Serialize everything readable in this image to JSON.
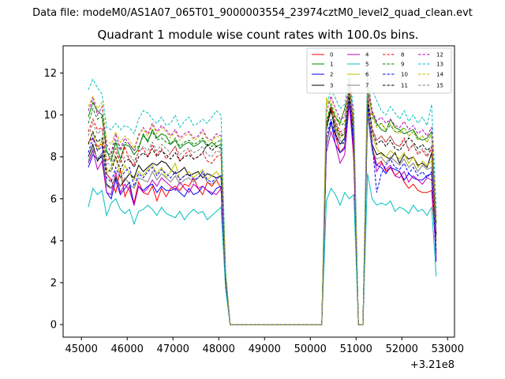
{
  "suptitle": "Data file: modeM0/AS1A07_065T01_9000003554_23974cztM0_level2_quad_clean.evt",
  "chart_data": {
    "type": "line",
    "title": "Quadrant 1 module wise count rates with 100.0s bins.",
    "xlabel": "",
    "ylabel": "",
    "x_offset_label": "+3.21e8",
    "xlim": [
      44600,
      53150
    ],
    "ylim": [
      -0.6,
      13.3
    ],
    "x_ticks": [
      45000,
      46000,
      47000,
      48000,
      49000,
      50000,
      51000,
      52000,
      53000
    ],
    "x_tick_labels": [
      "45000",
      "46000",
      "47000",
      "48000",
      "49000",
      "50000",
      "51000",
      "52000",
      "53000"
    ],
    "y_ticks": [
      0,
      2,
      4,
      6,
      8,
      10,
      12
    ],
    "y_tick_labels": [
      "0",
      "2",
      "4",
      "6",
      "8",
      "10",
      "12"
    ],
    "legend_position": "top-right",
    "x": [
      45150,
      45250,
      45350,
      45450,
      45550,
      45650,
      45750,
      45850,
      45950,
      46050,
      46150,
      46250,
      46350,
      46450,
      46550,
      46650,
      46750,
      46850,
      46950,
      47050,
      47150,
      47250,
      47350,
      47450,
      47550,
      47650,
      47750,
      47850,
      47950,
      48050,
      48150,
      48250,
      50250,
      50350,
      50450,
      50550,
      50650,
      50750,
      50850,
      50950,
      51050,
      51150,
      51250,
      51350,
      51450,
      51550,
      51650,
      51750,
      51850,
      51950,
      52050,
      52150,
      52250,
      52350,
      52450,
      52550,
      52650,
      52750
    ],
    "series": [
      {
        "name": "0",
        "color": "#ff0000",
        "dash": "solid",
        "values": [
          8.7,
          8.9,
          8.5,
          8.6,
          7.2,
          6.9,
          6.3,
          7.4,
          6.1,
          6.6,
          5.8,
          6.8,
          6.3,
          6.2,
          6.6,
          5.9,
          6.5,
          6.1,
          6.5,
          6.6,
          6.4,
          6.7,
          6.6,
          7.0,
          6.5,
          6.2,
          6.8,
          6.6,
          6.9,
          6.5,
          2.0,
          0.0,
          0.0,
          8.6,
          9.6,
          9.0,
          8.2,
          8.5,
          10.9,
          7.8,
          0.0,
          0.0,
          10.6,
          8.5,
          7.6,
          7.8,
          7.3,
          7.5,
          7.1,
          7.3,
          6.8,
          6.5,
          6.7,
          6.4,
          6.3,
          6.3,
          6.4,
          3.5
        ]
      },
      {
        "name": "1",
        "color": "#008000",
        "dash": "solid",
        "values": [
          9.9,
          10.6,
          10.2,
          10.0,
          8.3,
          7.8,
          8.7,
          7.9,
          8.6,
          8.5,
          8.1,
          8.4,
          9.1,
          8.7,
          9.3,
          8.9,
          9.1,
          9.0,
          8.6,
          8.8,
          8.4,
          8.6,
          8.7,
          8.5,
          8.6,
          8.8,
          8.5,
          8.7,
          8.5,
          8.6,
          2.4,
          0.0,
          0.0,
          9.5,
          10.4,
          9.9,
          9.6,
          10.3,
          11.1,
          9.5,
          0.0,
          0.0,
          11.2,
          10.1,
          9.6,
          9.3,
          9.2,
          9.8,
          9.4,
          9.3,
          9.1,
          9.2,
          9.3,
          8.9,
          8.8,
          8.9,
          9.2,
          4.8
        ]
      },
      {
        "name": "2",
        "color": "#0000ff",
        "dash": "solid",
        "values": [
          7.5,
          8.1,
          7.9,
          8.0,
          6.3,
          6.0,
          6.9,
          6.2,
          6.5,
          6.8,
          5.7,
          6.6,
          6.4,
          6.6,
          6.7,
          6.3,
          6.6,
          6.4,
          6.4,
          6.5,
          6.3,
          6.1,
          6.5,
          6.2,
          6.3,
          6.6,
          6.4,
          6.2,
          6.5,
          6.6,
          2.0,
          0.0,
          0.0,
          8.5,
          9.7,
          8.6,
          8.2,
          8.4,
          10.8,
          8.4,
          0.0,
          0.0,
          10.0,
          8.3,
          7.6,
          7.5,
          7.2,
          7.5,
          7.4,
          7.3,
          6.9,
          7.2,
          7.0,
          6.9,
          6.9,
          7.1,
          7.2,
          3.0
        ]
      },
      {
        "name": "3",
        "color": "#000000",
        "dash": "solid",
        "values": [
          8.0,
          8.6,
          7.8,
          8.1,
          6.7,
          6.5,
          7.0,
          6.6,
          6.9,
          7.2,
          7.0,
          7.6,
          7.3,
          7.5,
          7.7,
          7.6,
          7.8,
          7.7,
          7.4,
          7.2,
          7.3,
          7.5,
          7.1,
          7.2,
          7.3,
          7.0,
          7.2,
          7.1,
          7.0,
          7.1,
          2.1,
          0.0,
          0.0,
          9.3,
          10.3,
          9.1,
          8.6,
          8.9,
          10.9,
          9.0,
          0.0,
          0.0,
          10.5,
          8.6,
          8.1,
          8.2,
          8.0,
          7.9,
          8.2,
          7.7,
          8.1,
          7.9,
          8.0,
          7.6,
          7.7,
          7.5,
          8.2,
          4.0
        ]
      },
      {
        "name": "4",
        "color": "#bf00bf",
        "dash": "solid",
        "values": [
          7.7,
          8.3,
          7.4,
          7.8,
          6.3,
          6.2,
          7.3,
          6.3,
          6.7,
          6.4,
          5.7,
          6.6,
          6.3,
          6.5,
          6.9,
          6.6,
          7.0,
          6.8,
          6.6,
          6.4,
          6.8,
          6.5,
          6.3,
          6.7,
          6.5,
          6.6,
          6.4,
          6.3,
          6.2,
          6.5,
          2.0,
          0.0,
          0.0,
          8.2,
          9.2,
          8.6,
          7.7,
          8.1,
          10.5,
          8.0,
          0.0,
          0.0,
          10.3,
          8.5,
          7.3,
          7.7,
          7.4,
          7.6,
          7.1,
          7.0,
          7.3,
          6.8,
          7.1,
          6.9,
          6.7,
          7.0,
          6.9,
          3.2
        ]
      },
      {
        "name": "5",
        "color": "#00bfbf",
        "dash": "solid",
        "values": [
          5.6,
          6.5,
          6.2,
          6.4,
          5.2,
          5.8,
          6.0,
          5.5,
          5.3,
          5.5,
          4.8,
          5.4,
          5.5,
          5.7,
          5.5,
          5.2,
          5.6,
          5.3,
          5.2,
          5.1,
          5.4,
          5.0,
          5.3,
          5.5,
          5.3,
          5.4,
          5.0,
          5.2,
          5.4,
          5.6,
          1.7,
          0.0,
          0.0,
          5.9,
          6.5,
          6.2,
          5.7,
          6.3,
          6.0,
          6.2,
          0.0,
          0.0,
          7.2,
          6.0,
          5.7,
          5.8,
          5.7,
          5.9,
          5.4,
          5.6,
          5.5,
          5.3,
          5.7,
          5.4,
          5.5,
          5.2,
          5.6,
          2.3
        ]
      },
      {
        "name": "6",
        "color": "#bfbf00",
        "dash": "solid",
        "values": [
          8.6,
          9.2,
          8.3,
          8.8,
          7.2,
          7.5,
          8.0,
          7.0,
          7.6,
          7.2,
          6.9,
          7.3,
          7.1,
          7.4,
          7.6,
          7.2,
          7.5,
          7.0,
          7.3,
          7.7,
          6.9,
          7.1,
          7.3,
          7.0,
          7.2,
          7.4,
          6.9,
          7.1,
          7.3,
          7.0,
          2.2,
          0.0,
          0.0,
          10.8,
          10.5,
          9.4,
          8.9,
          9.1,
          11.1,
          9.0,
          0.0,
          0.0,
          10.2,
          9.0,
          8.4,
          8.1,
          8.0,
          8.3,
          8.1,
          7.9,
          8.2,
          7.7,
          8.0,
          7.5,
          7.8,
          7.6,
          7.8,
          3.8
        ]
      },
      {
        "name": "7",
        "color": "#808080",
        "dash": "solid",
        "values": [
          7.8,
          8.4,
          7.9,
          8.2,
          6.6,
          6.5,
          7.1,
          6.6,
          7.0,
          6.7,
          6.5,
          7.0,
          6.9,
          6.8,
          7.3,
          6.9,
          7.2,
          7.0,
          6.8,
          7.1,
          6.7,
          6.9,
          7.0,
          6.8,
          7.0,
          7.2,
          6.8,
          6.7,
          6.9,
          7.1,
          2.1,
          0.0,
          0.0,
          8.6,
          9.5,
          9.3,
          8.8,
          8.6,
          11.2,
          8.7,
          0.0,
          0.0,
          10.1,
          8.3,
          7.9,
          8.0,
          7.7,
          8.0,
          7.8,
          7.6,
          7.9,
          7.5,
          7.7,
          7.3,
          7.6,
          7.4,
          7.5,
          3.6
        ]
      },
      {
        "name": "8",
        "color": "#ff0000",
        "dash": "dashed",
        "values": [
          9.2,
          9.8,
          9.3,
          9.4,
          7.8,
          8.0,
          8.4,
          7.7,
          8.5,
          7.8,
          7.6,
          8.3,
          8.4,
          8.0,
          8.6,
          8.1,
          8.4,
          7.9,
          8.2,
          8.5,
          7.8,
          8.1,
          8.3,
          7.9,
          8.0,
          8.2,
          7.8,
          7.7,
          8.0,
          8.1,
          2.3,
          0.0,
          0.0,
          9.6,
          10.4,
          9.7,
          9.2,
          9.3,
          11.4,
          9.2,
          0.0,
          0.0,
          11.0,
          9.4,
          8.8,
          9.0,
          8.7,
          9.0,
          8.6,
          8.5,
          8.9,
          8.3,
          8.6,
          8.1,
          8.3,
          8.0,
          8.4,
          4.3
        ]
      },
      {
        "name": "9",
        "color": "#008000",
        "dash": "dashed",
        "values": [
          9.6,
          10.3,
          9.8,
          9.9,
          8.2,
          8.1,
          8.8,
          8.3,
          8.7,
          8.6,
          8.3,
          8.5,
          9.0,
          8.8,
          9.2,
          8.8,
          8.9,
          8.7,
          8.6,
          8.9,
          8.5,
          8.7,
          8.8,
          8.6,
          8.7,
          8.9,
          8.6,
          8.5,
          8.7,
          8.8,
          2.4,
          0.0,
          0.0,
          9.7,
          10.5,
          9.9,
          9.5,
          9.6,
          11.4,
          9.6,
          0.0,
          0.0,
          11.5,
          9.9,
          9.5,
          9.6,
          9.3,
          9.5,
          9.2,
          9.2,
          9.4,
          9.0,
          9.2,
          8.8,
          9.0,
          8.7,
          9.1,
          4.9
        ]
      },
      {
        "name": "10",
        "color": "#0000ff",
        "dash": "dashed",
        "values": [
          8.2,
          8.9,
          8.3,
          8.5,
          7.0,
          6.8,
          7.5,
          7.0,
          7.3,
          7.5,
          6.6,
          7.2,
          7.0,
          7.3,
          7.5,
          7.1,
          7.4,
          7.2,
          7.0,
          7.3,
          6.9,
          7.1,
          7.2,
          6.9,
          7.0,
          7.3,
          6.9,
          6.8,
          7.0,
          7.1,
          2.1,
          0.0,
          0.0,
          8.9,
          9.8,
          9.0,
          8.6,
          8.7,
          11.0,
          8.6,
          0.0,
          0.0,
          10.4,
          8.7,
          6.3,
          7.2,
          7.6,
          7.9,
          7.5,
          7.4,
          7.7,
          7.2,
          7.5,
          7.1,
          7.3,
          7.0,
          7.3,
          3.4
        ]
      },
      {
        "name": "11",
        "color": "#000000",
        "dash": "dashed",
        "values": [
          8.6,
          9.2,
          8.7,
          8.9,
          7.4,
          7.3,
          8.0,
          7.4,
          7.8,
          7.9,
          7.5,
          8.0,
          8.2,
          8.0,
          8.4,
          8.0,
          8.3,
          8.1,
          7.9,
          8.2,
          7.8,
          8.0,
          8.1,
          7.9,
          8.0,
          8.2,
          8.6,
          8.3,
          8.5,
          8.4,
          2.3,
          0.0,
          0.0,
          9.3,
          10.2,
          9.5,
          9.0,
          9.1,
          11.1,
          9.0,
          0.0,
          0.0,
          10.8,
          9.2,
          8.6,
          8.8,
          8.5,
          8.8,
          8.4,
          8.3,
          8.6,
          8.9,
          8.7,
          8.4,
          8.6,
          8.3,
          8.5,
          4.2
        ]
      },
      {
        "name": "12",
        "color": "#bf00bf",
        "dash": "dashed",
        "values": [
          10.2,
          10.8,
          10.0,
          10.4,
          8.6,
          8.2,
          9.1,
          8.4,
          8.9,
          8.6,
          8.3,
          9.0,
          9.4,
          9.1,
          9.6,
          9.2,
          9.5,
          9.3,
          9.0,
          9.3,
          8.9,
          9.1,
          9.2,
          8.9,
          9.0,
          9.3,
          8.9,
          8.8,
          9.1,
          9.0,
          2.5,
          0.0,
          0.0,
          10.1,
          10.9,
          10.3,
          9.8,
          9.9,
          11.7,
          9.8,
          0.0,
          0.0,
          11.8,
          10.2,
          9.7,
          9.9,
          9.6,
          9.8,
          9.5,
          9.4,
          9.7,
          9.3,
          9.5,
          9.1,
          9.3,
          9.0,
          9.4,
          5.2
        ]
      },
      {
        "name": "13",
        "color": "#00bfbf",
        "dash": "dashed",
        "values": [
          11.2,
          11.7,
          11.3,
          11.0,
          9.4,
          9.3,
          9.6,
          9.3,
          9.5,
          9.4,
          9.1,
          9.8,
          10.2,
          10.1,
          9.8,
          9.6,
          9.9,
          9.5,
          9.6,
          10.0,
          9.4,
          9.7,
          9.9,
          9.5,
          9.6,
          9.8,
          9.6,
          9.9,
          10.2,
          10.0,
          2.6,
          0.0,
          0.0,
          10.4,
          11.2,
          10.8,
          10.3,
          10.5,
          11.9,
          10.2,
          0.0,
          0.0,
          12.6,
          11.2,
          10.7,
          10.2,
          10.0,
          10.4,
          10.1,
          9.8,
          10.2,
          9.7,
          10.0,
          9.6,
          9.9,
          9.5,
          10.5,
          5.5
        ]
      },
      {
        "name": "14",
        "color": "#bfbf00",
        "dash": "dashed",
        "values": [
          10.4,
          10.9,
          10.3,
          10.6,
          8.8,
          8.6,
          9.2,
          8.7,
          9.0,
          8.8,
          8.4,
          9.1,
          9.3,
          9.0,
          9.5,
          9.1,
          9.4,
          9.2,
          8.9,
          9.2,
          8.8,
          9.0,
          9.1,
          8.8,
          8.9,
          9.2,
          8.8,
          8.7,
          9.0,
          8.9,
          2.5,
          0.0,
          0.0,
          10.5,
          10.7,
          10.1,
          9.6,
          9.7,
          11.5,
          9.6,
          0.0,
          0.0,
          11.6,
          10.0,
          9.4,
          9.6,
          9.3,
          9.6,
          9.2,
          9.1,
          9.4,
          9.0,
          9.2,
          8.8,
          9.0,
          8.7,
          9.1,
          5.0
        ]
      },
      {
        "name": "15",
        "color": "#808080",
        "dash": "dashed",
        "values": [
          9.0,
          9.6,
          9.1,
          9.3,
          7.7,
          7.6,
          8.2,
          7.7,
          8.0,
          8.1,
          7.8,
          8.2,
          8.5,
          8.3,
          8.7,
          8.3,
          8.6,
          8.4,
          8.2,
          8.5,
          8.1,
          8.3,
          8.4,
          8.2,
          8.3,
          8.5,
          8.1,
          8.0,
          8.3,
          8.2,
          2.3,
          0.0,
          0.0,
          9.4,
          10.1,
          9.6,
          9.1,
          9.2,
          11.0,
          9.1,
          0.0,
          0.0,
          11.0,
          9.3,
          8.8,
          9.0,
          8.7,
          9.0,
          8.6,
          8.5,
          8.8,
          8.4,
          8.6,
          8.2,
          8.4,
          8.1,
          8.5,
          4.5
        ]
      }
    ]
  }
}
